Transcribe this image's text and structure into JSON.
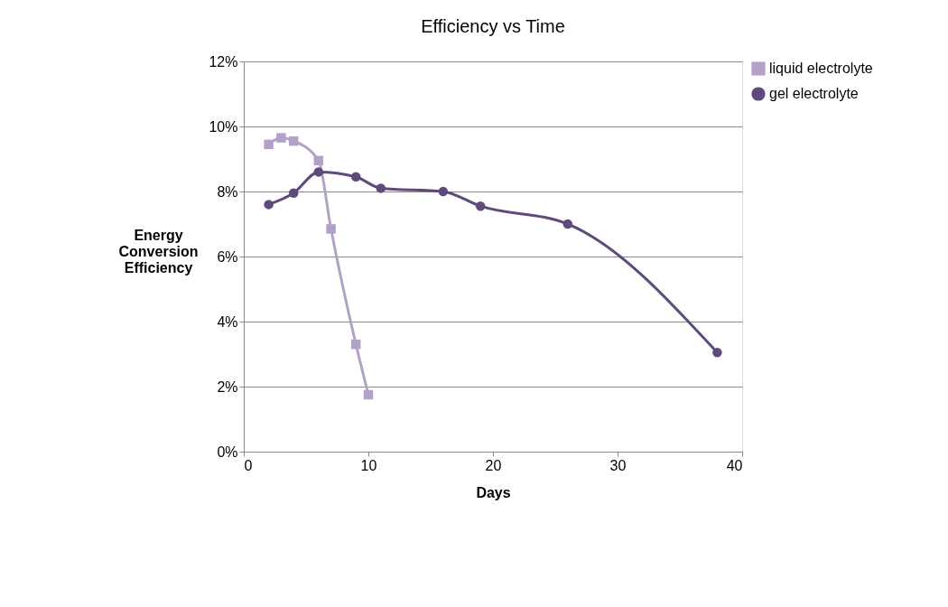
{
  "chart_data": {
    "type": "line",
    "title": "Efficiency vs Time",
    "xlabel": "Days",
    "ylabel": "Energy Conversion Efficiency",
    "xlim": [
      0,
      40
    ],
    "xticks": [
      0,
      10,
      20,
      30,
      40
    ],
    "ylim": [
      0,
      12
    ],
    "yticks": [
      {
        "value": 0,
        "label": "0%"
      },
      {
        "value": 2,
        "label": "2%"
      },
      {
        "value": 4,
        "label": "4%"
      },
      {
        "value": 6,
        "label": "6%"
      },
      {
        "value": 8,
        "label": "8%"
      },
      {
        "value": 10,
        "label": "10%"
      },
      {
        "value": 12,
        "label": "12%"
      }
    ],
    "grid": "y",
    "legend": "right",
    "series": [
      {
        "name": "liquid electrolyte",
        "color": "#b3a2c7",
        "marker": "square",
        "x": [
          2,
          3,
          4,
          6,
          7,
          9,
          10
        ],
        "values": [
          9.45,
          9.65,
          9.55,
          8.95,
          6.85,
          3.3,
          1.75
        ]
      },
      {
        "name": "gel electrolyte",
        "color": "#604a7b",
        "marker": "circle",
        "x": [
          2,
          4,
          6,
          9,
          11,
          16,
          19,
          26,
          38
        ],
        "values": [
          7.6,
          7.95,
          8.6,
          8.45,
          8.1,
          8.0,
          7.55,
          7.0,
          3.05
        ]
      }
    ]
  }
}
